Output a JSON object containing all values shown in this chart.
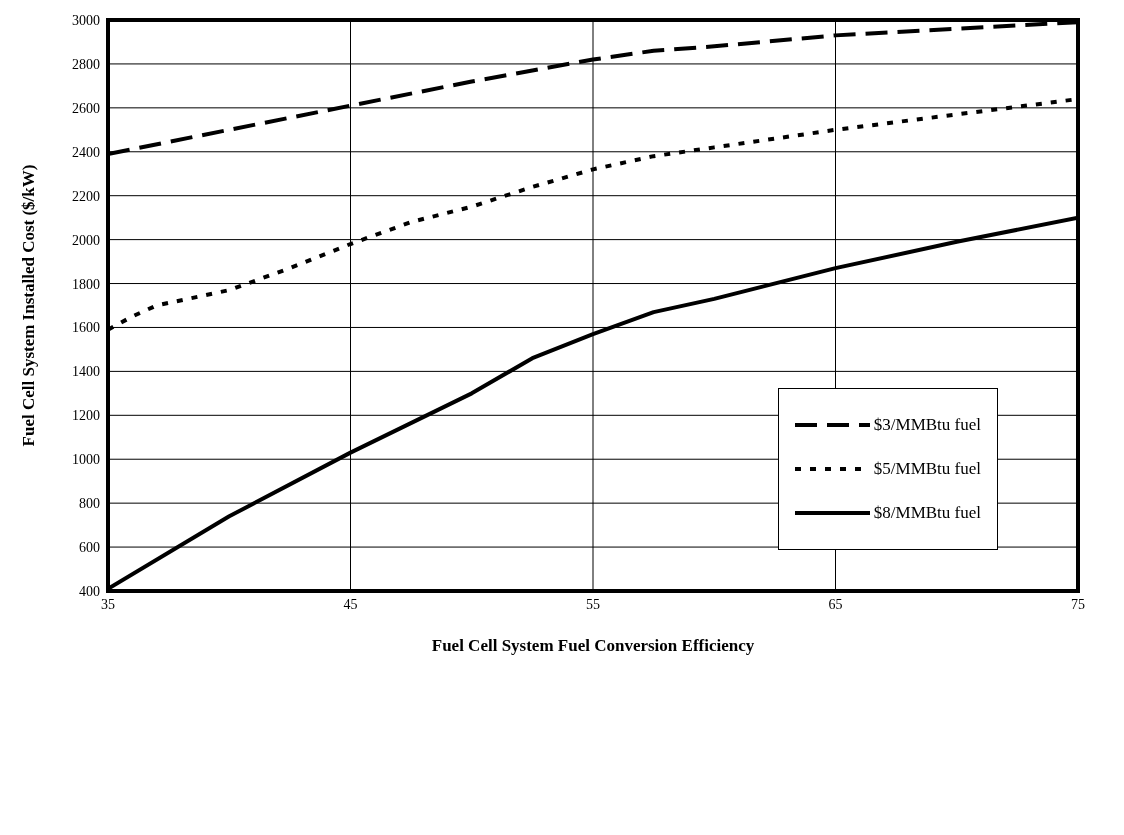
{
  "chart_data": {
    "type": "line",
    "xlabel": "Fuel Cell System Fuel Conversion Efficiency",
    "ylabel": "Fuel Cell System Installed Cost ($/kW)",
    "xlim": [
      35,
      75
    ],
    "xticks": [
      35,
      45,
      55,
      65,
      75
    ],
    "ylim": [
      400,
      3000
    ],
    "yticks": [
      400,
      600,
      800,
      1000,
      1200,
      1400,
      1600,
      1800,
      2000,
      2200,
      2400,
      2600,
      2800,
      3000
    ],
    "grid": true,
    "legend": "right",
    "marker": "none",
    "series": [
      {
        "name": "$3/MMBtu fuel",
        "color": "#000000",
        "line_style": "dashed",
        "x": [
          35,
          40,
          45,
          50,
          52.5,
          55,
          57.5,
          60,
          65,
          70,
          75
        ],
        "values": [
          2390,
          2500,
          2610,
          2720,
          2770,
          2820,
          2860,
          2880,
          2930,
          2960,
          2990
        ]
      },
      {
        "name": "$5/MMBtu fuel",
        "color": "#000000",
        "line_style": "dotted",
        "x": [
          35,
          36,
          37,
          40,
          42.5,
          45,
          47.5,
          50,
          52.5,
          55,
          57.5,
          60,
          65,
          70,
          75
        ],
        "values": [
          1590,
          1650,
          1700,
          1770,
          1870,
          1980,
          2080,
          2150,
          2240,
          2320,
          2380,
          2420,
          2500,
          2570,
          2640
        ]
      },
      {
        "name": "$8/MMBtu fuel",
        "color": "#000000",
        "line_style": "solid",
        "x": [
          35,
          40,
          45,
          50,
          52.5,
          55,
          57.5,
          60,
          65,
          70,
          75
        ],
        "values": [
          410,
          740,
          1030,
          1300,
          1460,
          1570,
          1670,
          1730,
          1870,
          1990,
          2100
        ]
      }
    ]
  }
}
